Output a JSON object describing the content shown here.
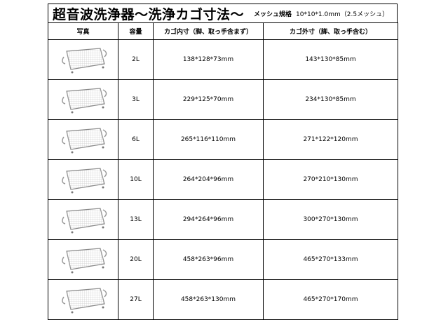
{
  "title": "超音波洗浄器～洗浄カゴ寸法～",
  "mesh_label": "メッシュ規格",
  "mesh_value": "10*10*1.0mm（2.5メッシュ）",
  "headers": [
    "写真",
    "容量",
    "カゴ内寸（脚、取っ手含まず）",
    "カゴ外寸（脚、取っ手含む）"
  ],
  "rows": [
    {
      "photo": "basket-photo",
      "capacity": "2L",
      "inner": "138*128*73mm",
      "outer": "143*130*85mm"
    },
    {
      "photo": "basket-photo",
      "capacity": "3L",
      "inner": "229*125*70mm",
      "outer": "234*130*85mm"
    },
    {
      "photo": "basket-photo",
      "capacity": "6L",
      "inner": "265*116*110mm",
      "outer": "271*122*120mm"
    },
    {
      "photo": "basket-photo",
      "capacity": "10L",
      "inner": "264*204*96mm",
      "outer": "270*210*130mm"
    },
    {
      "photo": "basket-photo",
      "capacity": "13L",
      "inner": "294*264*96mm",
      "outer": "300*270*130mm"
    },
    {
      "photo": "basket-photo",
      "capacity": "20L",
      "inner": "458*263*96mm",
      "outer": "465*270*133mm"
    },
    {
      "photo": "basket-photo",
      "capacity": "27L",
      "inner": "458*263*130mm",
      "outer": "465*270*170mm"
    }
  ]
}
